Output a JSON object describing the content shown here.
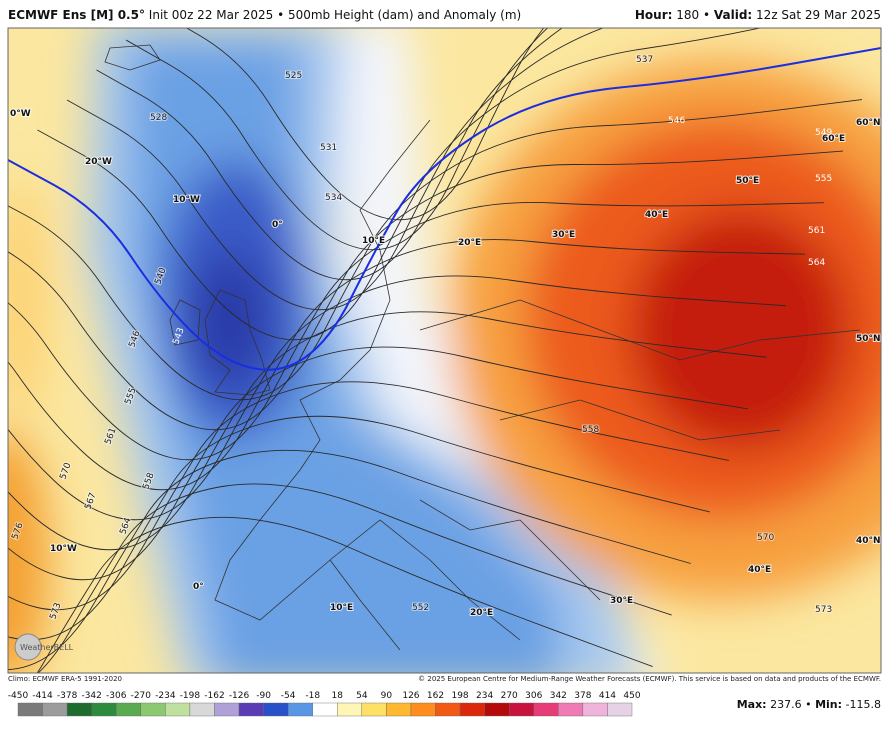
{
  "header": {
    "title_bold": "ECMWF Ens [M] 0.5°",
    "title": "Init 00z 22 Mar 2025 • 500mb Height (dam) and Anomaly (m)",
    "hour_label": "Hour:",
    "hour": 180,
    "separator": "•",
    "valid_label": "Valid:",
    "valid": "12z Sat 29 Mar 2025"
  },
  "map": {
    "contour_labels": [
      537,
      546,
      549,
      555,
      561,
      564,
      534,
      531,
      528,
      525,
      540,
      543,
      546,
      555,
      561,
      558,
      567,
      564,
      570,
      576,
      573,
      552,
      558,
      570,
      573
    ],
    "grid_labels": [
      "0°W",
      "20°W",
      "10°W",
      "0°",
      "10°E",
      "20°E",
      "30°E",
      "40°E",
      "50°E",
      "60°E",
      "60°N",
      "50°N",
      "40°N",
      "40°E",
      "30°E",
      "20°E",
      "10°E",
      "0°",
      "10°W"
    ]
  },
  "footer": {
    "climo": "Climo: ECMWF ERA-5 1991-2020",
    "copyright": "© 2025 European Centre for Medium-Range Weather Forecasts (ECMWF). This service is based on data and products of the ECMWF.",
    "logo": "WeatherBELL"
  },
  "colorbar": {
    "labels": [
      -450,
      -414,
      -378,
      -342,
      -306,
      -270,
      -234,
      -198,
      -162,
      -126,
      -90,
      -54,
      -18,
      18,
      54,
      90,
      126,
      162,
      198,
      234,
      270,
      306,
      342,
      378,
      414,
      450
    ],
    "colors": [
      "#7a7a7a",
      "#9c9c9c",
      "#1e6b2e",
      "#2e8b3e",
      "#5aab50",
      "#8cc870",
      "#c0e0a0",
      "#d8d8d8",
      "#b0a0d8",
      "#5a3cb4",
      "#2850c8",
      "#5a96e6",
      "#ffffff",
      "#fff5b4",
      "#ffe066",
      "#ffb830",
      "#ff8c1e",
      "#f05a14",
      "#dc280a",
      "#b40a0a",
      "#c8143c",
      "#e63c78",
      "#f07ab4",
      "#f0b4dc",
      "#e6d2e6"
    ]
  },
  "stats": {
    "max_label": "Max:",
    "max": 237.6,
    "separator": "•",
    "min_label": "Min:",
    "min": -115.8
  }
}
